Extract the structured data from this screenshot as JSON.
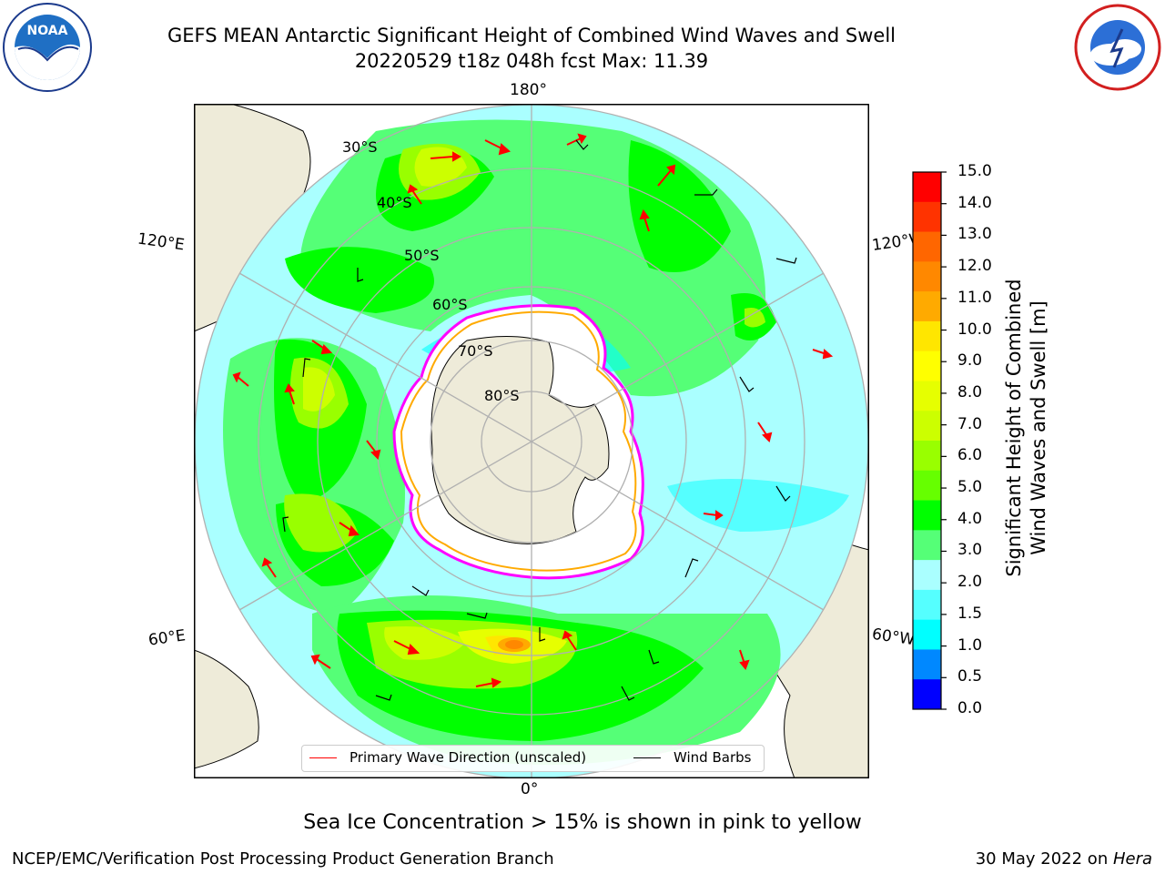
{
  "title": {
    "line1": "GEFS MEAN Antarctic Significant Height of Combined Wind Waves and Swell",
    "line2": "20220529 t18z 048h fcst   Max: 11.39"
  },
  "map": {
    "projection": "south-polar-stereographic",
    "longitude_labels": {
      "top": "180°",
      "bottom": "0°",
      "upper_left": "120°E",
      "lower_left": "60°E",
      "upper_right": "120°W",
      "lower_right": "60°W"
    },
    "latitude_labels": [
      "30°S",
      "40°S",
      "50°S",
      "60°S",
      "70°S",
      "80°S"
    ],
    "colors": {
      "land": "#EEEBD9",
      "ice_sheet": "#FFFFFF",
      "grid": "#B0B0B0",
      "sea_ice_edge": "#FF00FF",
      "wave_arrow": "#FF0000",
      "wind_barb": "#000000"
    }
  },
  "legend": {
    "wave_direction": "Primary Wave Direction (unscaled)",
    "wind_barbs": "Wind Barbs"
  },
  "colorbar": {
    "label_line1": "Significant Height of Combined",
    "label_line2": "Wind Waves and Swell [m]",
    "ticks": [
      "15.0",
      "14.0",
      "13.0",
      "12.0",
      "11.0",
      "10.0",
      "9.0",
      "8.0",
      "7.0",
      "6.0",
      "5.0",
      "4.0",
      "3.0",
      "2.0",
      "1.5",
      "1.0",
      "0.5",
      "0.0"
    ],
    "colors": [
      "#FF0000",
      "#FF3300",
      "#FF6600",
      "#FF8800",
      "#FFAA00",
      "#FFE600",
      "#FFFF00",
      "#E6FF00",
      "#CCFF00",
      "#99FF00",
      "#66FF00",
      "#00FF00",
      "#55FF77",
      "#AAFFFF",
      "#55FFFF",
      "#00FFFF",
      "#0088FF",
      "#0000FF"
    ]
  },
  "note": "Sea Ice Concentration > 15% is shown in pink to yellow",
  "footer": {
    "left": "NCEP/EMC/Verification Post Processing Product Generation Branch",
    "right_prefix": "30 May 2022 on ",
    "right_host": "Hera"
  },
  "logos": {
    "left": "NOAA",
    "right": "NATIONAL WEATHER SERVICE"
  }
}
